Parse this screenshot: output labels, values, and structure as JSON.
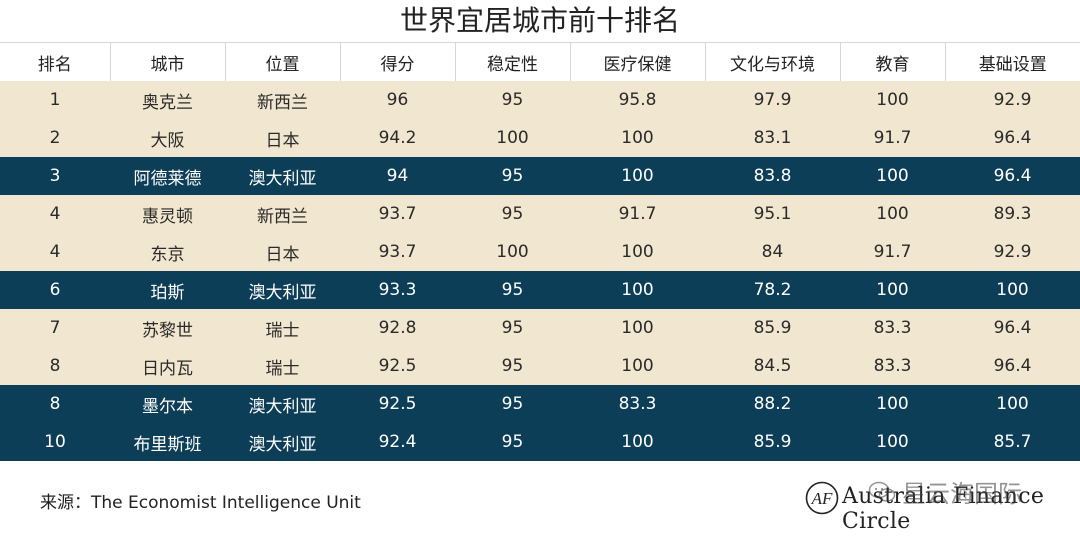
{
  "title": "世界宜居城市前十排名",
  "table": {
    "headers": [
      "排名",
      "城市",
      "位置",
      "得分",
      "稳定性",
      "医疗保健",
      "文化与环境",
      "教育",
      "基础设置"
    ],
    "rows": [
      {
        "style": "light",
        "cells": [
          "1",
          "奥克兰",
          "新西兰",
          "96",
          "95",
          "95.8",
          "97.9",
          "100",
          "92.9"
        ]
      },
      {
        "style": "light",
        "cells": [
          "2",
          "大阪",
          "日本",
          "94.2",
          "100",
          "100",
          "83.1",
          "91.7",
          "96.4"
        ]
      },
      {
        "style": "dark",
        "cells": [
          "3",
          "阿德莱德",
          "澳大利亚",
          "94",
          "95",
          "100",
          "83.8",
          "100",
          "96.4"
        ]
      },
      {
        "style": "light",
        "cells": [
          "4",
          "惠灵顿",
          "新西兰",
          "93.7",
          "95",
          "91.7",
          "95.1",
          "100",
          "89.3"
        ]
      },
      {
        "style": "light",
        "cells": [
          "4",
          "东京",
          "日本",
          "93.7",
          "100",
          "100",
          "84",
          "91.7",
          "92.9"
        ]
      },
      {
        "style": "dark",
        "cells": [
          "6",
          "珀斯",
          "澳大利亚",
          "93.3",
          "95",
          "100",
          "78.2",
          "100",
          "100"
        ]
      },
      {
        "style": "light",
        "cells": [
          "7",
          "苏黎世",
          "瑞士",
          "92.8",
          "95",
          "100",
          "85.9",
          "83.3",
          "96.4"
        ]
      },
      {
        "style": "light",
        "cells": [
          "8",
          "日内瓦",
          "瑞士",
          "92.5",
          "95",
          "100",
          "84.5",
          "83.3",
          "96.4"
        ]
      },
      {
        "style": "dark",
        "cells": [
          "8",
          "墨尔本",
          "澳大利亚",
          "92.5",
          "95",
          "83.3",
          "88.2",
          "100",
          "100"
        ]
      },
      {
        "style": "dark",
        "cells": [
          "10",
          "布里斯班",
          "澳大利亚",
          "92.4",
          "95",
          "100",
          "85.9",
          "100",
          "85.7"
        ]
      }
    ]
  },
  "footer": {
    "source": "来源：The Economist Intelligence Unit",
    "brand": "Australia Finance Circle",
    "logo_icon": "afc-logo-icon"
  },
  "watermark": {
    "text": "星云海国际",
    "icon": "wechat-icon"
  },
  "colors": {
    "light_row": "#f1e6cf",
    "dark_row": "#0d3e57"
  }
}
